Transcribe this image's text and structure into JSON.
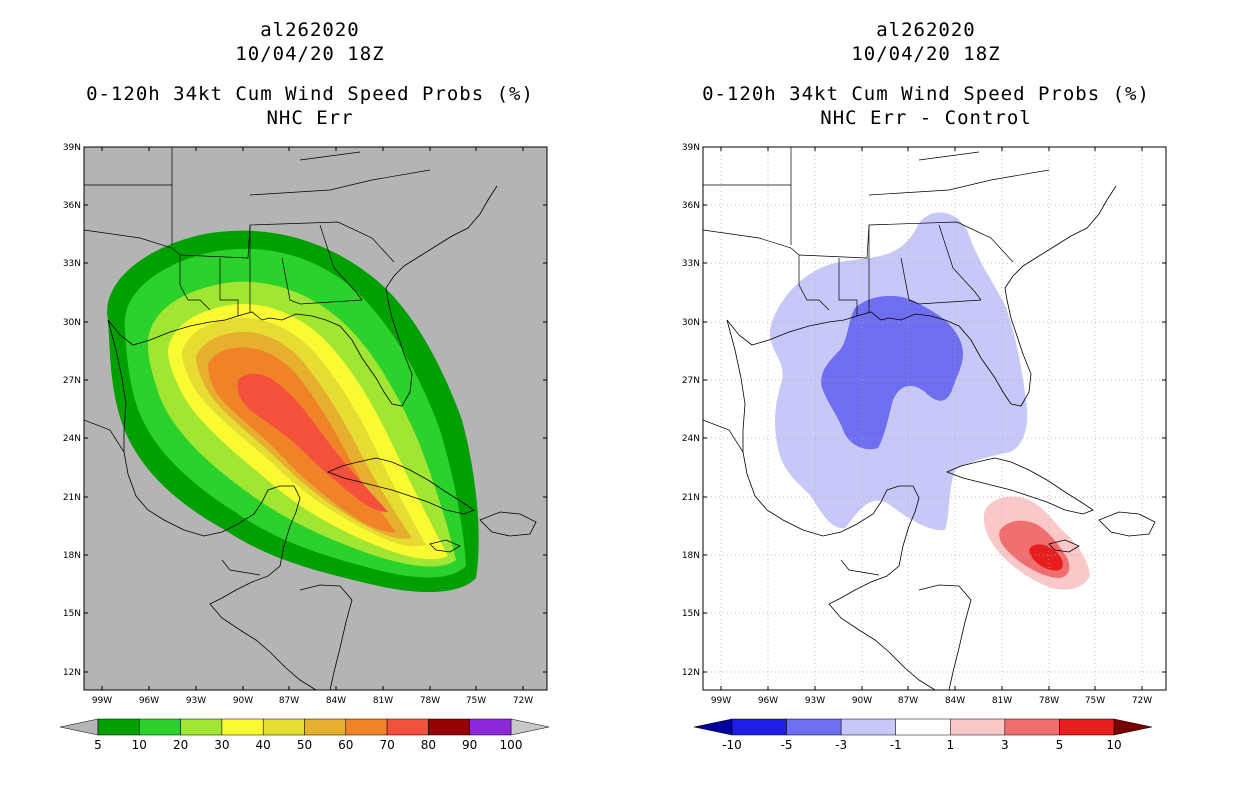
{
  "panels": [
    {
      "storm_id": "al262020",
      "datetime": "10/04/20 18Z",
      "product": "0-120h 34kt Cum Wind Speed Probs (%)",
      "subtitle": "NHC Err",
      "colors": {
        "land_ocean": "#b4b4b4"
      },
      "colorbar": {
        "under_color": "#b4b4b4",
        "over_color": "#c8c8c8",
        "colors": [
          "#00a000",
          "#2cd22c",
          "#a0e632",
          "#fafa32",
          "#e6dc32",
          "#e6af2d",
          "#f08228",
          "#f5503c",
          "#960000",
          "#8c28dc"
        ],
        "labels": [
          "5",
          "10",
          "20",
          "30",
          "40",
          "50",
          "60",
          "70",
          "80",
          "90",
          "100"
        ]
      }
    },
    {
      "storm_id": "al262020",
      "datetime": "10/04/20 18Z",
      "product": "0-120h 34kt Cum Wind Speed Probs (%)",
      "subtitle": "NHC Err - Control",
      "colorbar": {
        "under_color": "#0000a0",
        "over_color": "#780000",
        "colors": [
          "#1e1ee6",
          "#6e6ef0",
          "#c8c8f8",
          "#ffffff",
          "#fac8c8",
          "#f06e6e",
          "#e61e1e"
        ],
        "labels": [
          "-10",
          "-5",
          "-3",
          "-1",
          "1",
          "3",
          "5",
          "10"
        ]
      }
    }
  ],
  "map": {
    "lat_labels": [
      "39N",
      "36N",
      "33N",
      "30N",
      "27N",
      "24N",
      "21N",
      "18N",
      "15N",
      "12N"
    ],
    "lon_labels": [
      "99W",
      "96W",
      "93W",
      "90W",
      "87W",
      "84W",
      "81W",
      "78W",
      "75W",
      "72W"
    ]
  }
}
